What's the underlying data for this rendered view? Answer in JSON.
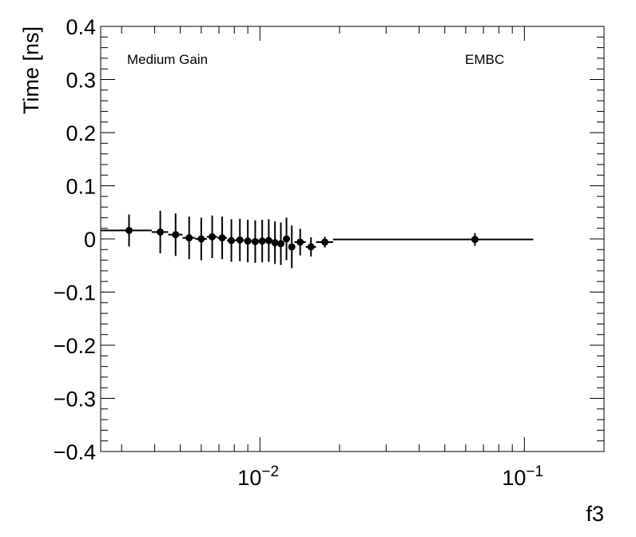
{
  "chart_data": {
    "type": "scatter",
    "title": "",
    "xlabel": "f3",
    "ylabel": "Time [ns]",
    "x_scale": "log",
    "xlim": [
      0.0025,
      0.2
    ],
    "ylim": [
      -0.4,
      0.4
    ],
    "y_ticks": [
      -0.4,
      -0.3,
      -0.2,
      -0.1,
      0,
      0.1,
      0.2,
      0.3,
      0.4
    ],
    "y_tick_labels": [
      "−0.4",
      "−0.3",
      "−0.2",
      "−0.1",
      "0",
      "0.1",
      "0.2",
      "0.3",
      "0.4"
    ],
    "x_tick_labels": [
      {
        "value": 0.01,
        "base": "10",
        "exp": "−2"
      },
      {
        "value": 0.1,
        "base": "10",
        "exp": "−1"
      }
    ],
    "grid": false,
    "annotations": [
      "Medium Gain",
      "EMBC"
    ],
    "series": [
      {
        "marker": "circle",
        "color": "#000000",
        "points": [
          {
            "x": 0.0032,
            "xlo": 0.0025,
            "xhi": 0.0039,
            "y": 0.016,
            "yerr": 0.03
          },
          {
            "x": 0.0042,
            "xlo": 0.0039,
            "xhi": 0.0045,
            "y": 0.013,
            "yerr": 0.04
          },
          {
            "x": 0.0048,
            "xlo": 0.0045,
            "xhi": 0.0051,
            "y": 0.008,
            "yerr": 0.04
          },
          {
            "x": 0.0054,
            "xlo": 0.0051,
            "xhi": 0.0057,
            "y": 0.002,
            "yerr": 0.04
          },
          {
            "x": 0.006,
            "xlo": 0.0057,
            "xhi": 0.0063,
            "y": 0.0,
            "yerr": 0.04
          },
          {
            "x": 0.0066,
            "xlo": 0.0063,
            "xhi": 0.0069,
            "y": 0.004,
            "yerr": 0.04
          },
          {
            "x": 0.0072,
            "xlo": 0.0069,
            "xhi": 0.0075,
            "y": 0.002,
            "yerr": 0.04
          },
          {
            "x": 0.0078,
            "xlo": 0.0075,
            "xhi": 0.0081,
            "y": -0.003,
            "yerr": 0.04
          },
          {
            "x": 0.0084,
            "xlo": 0.0081,
            "xhi": 0.0087,
            "y": -0.002,
            "yerr": 0.04
          },
          {
            "x": 0.009,
            "xlo": 0.0087,
            "xhi": 0.0093,
            "y": -0.004,
            "yerr": 0.04
          },
          {
            "x": 0.0096,
            "xlo": 0.0093,
            "xhi": 0.0099,
            "y": -0.005,
            "yerr": 0.04
          },
          {
            "x": 0.0102,
            "xlo": 0.0099,
            "xhi": 0.0105,
            "y": -0.004,
            "yerr": 0.04
          },
          {
            "x": 0.0108,
            "xlo": 0.0105,
            "xhi": 0.0111,
            "y": -0.003,
            "yerr": 0.04
          },
          {
            "x": 0.0114,
            "xlo": 0.0111,
            "xhi": 0.0117,
            "y": -0.007,
            "yerr": 0.04
          },
          {
            "x": 0.012,
            "xlo": 0.0117,
            "xhi": 0.0123,
            "y": -0.009,
            "yerr": 0.04
          },
          {
            "x": 0.0126,
            "xlo": 0.0123,
            "xhi": 0.0129,
            "y": 0.0,
            "yerr": 0.04
          },
          {
            "x": 0.0132,
            "xlo": 0.0129,
            "xhi": 0.0135,
            "y": -0.015,
            "yerr": 0.04
          },
          {
            "x": 0.0142,
            "xlo": 0.0135,
            "xhi": 0.0149,
            "y": -0.006,
            "yerr": 0.025
          },
          {
            "x": 0.0156,
            "xlo": 0.0149,
            "xhi": 0.0163,
            "y": -0.015,
            "yerr": 0.018
          },
          {
            "x": 0.0176,
            "xlo": 0.0163,
            "xhi": 0.0189,
            "y": -0.006,
            "yerr": 0.01
          },
          {
            "x": 0.065,
            "xlo": 0.0189,
            "xhi": 0.108,
            "y": -0.001,
            "yerr": 0.012
          }
        ]
      }
    ]
  }
}
